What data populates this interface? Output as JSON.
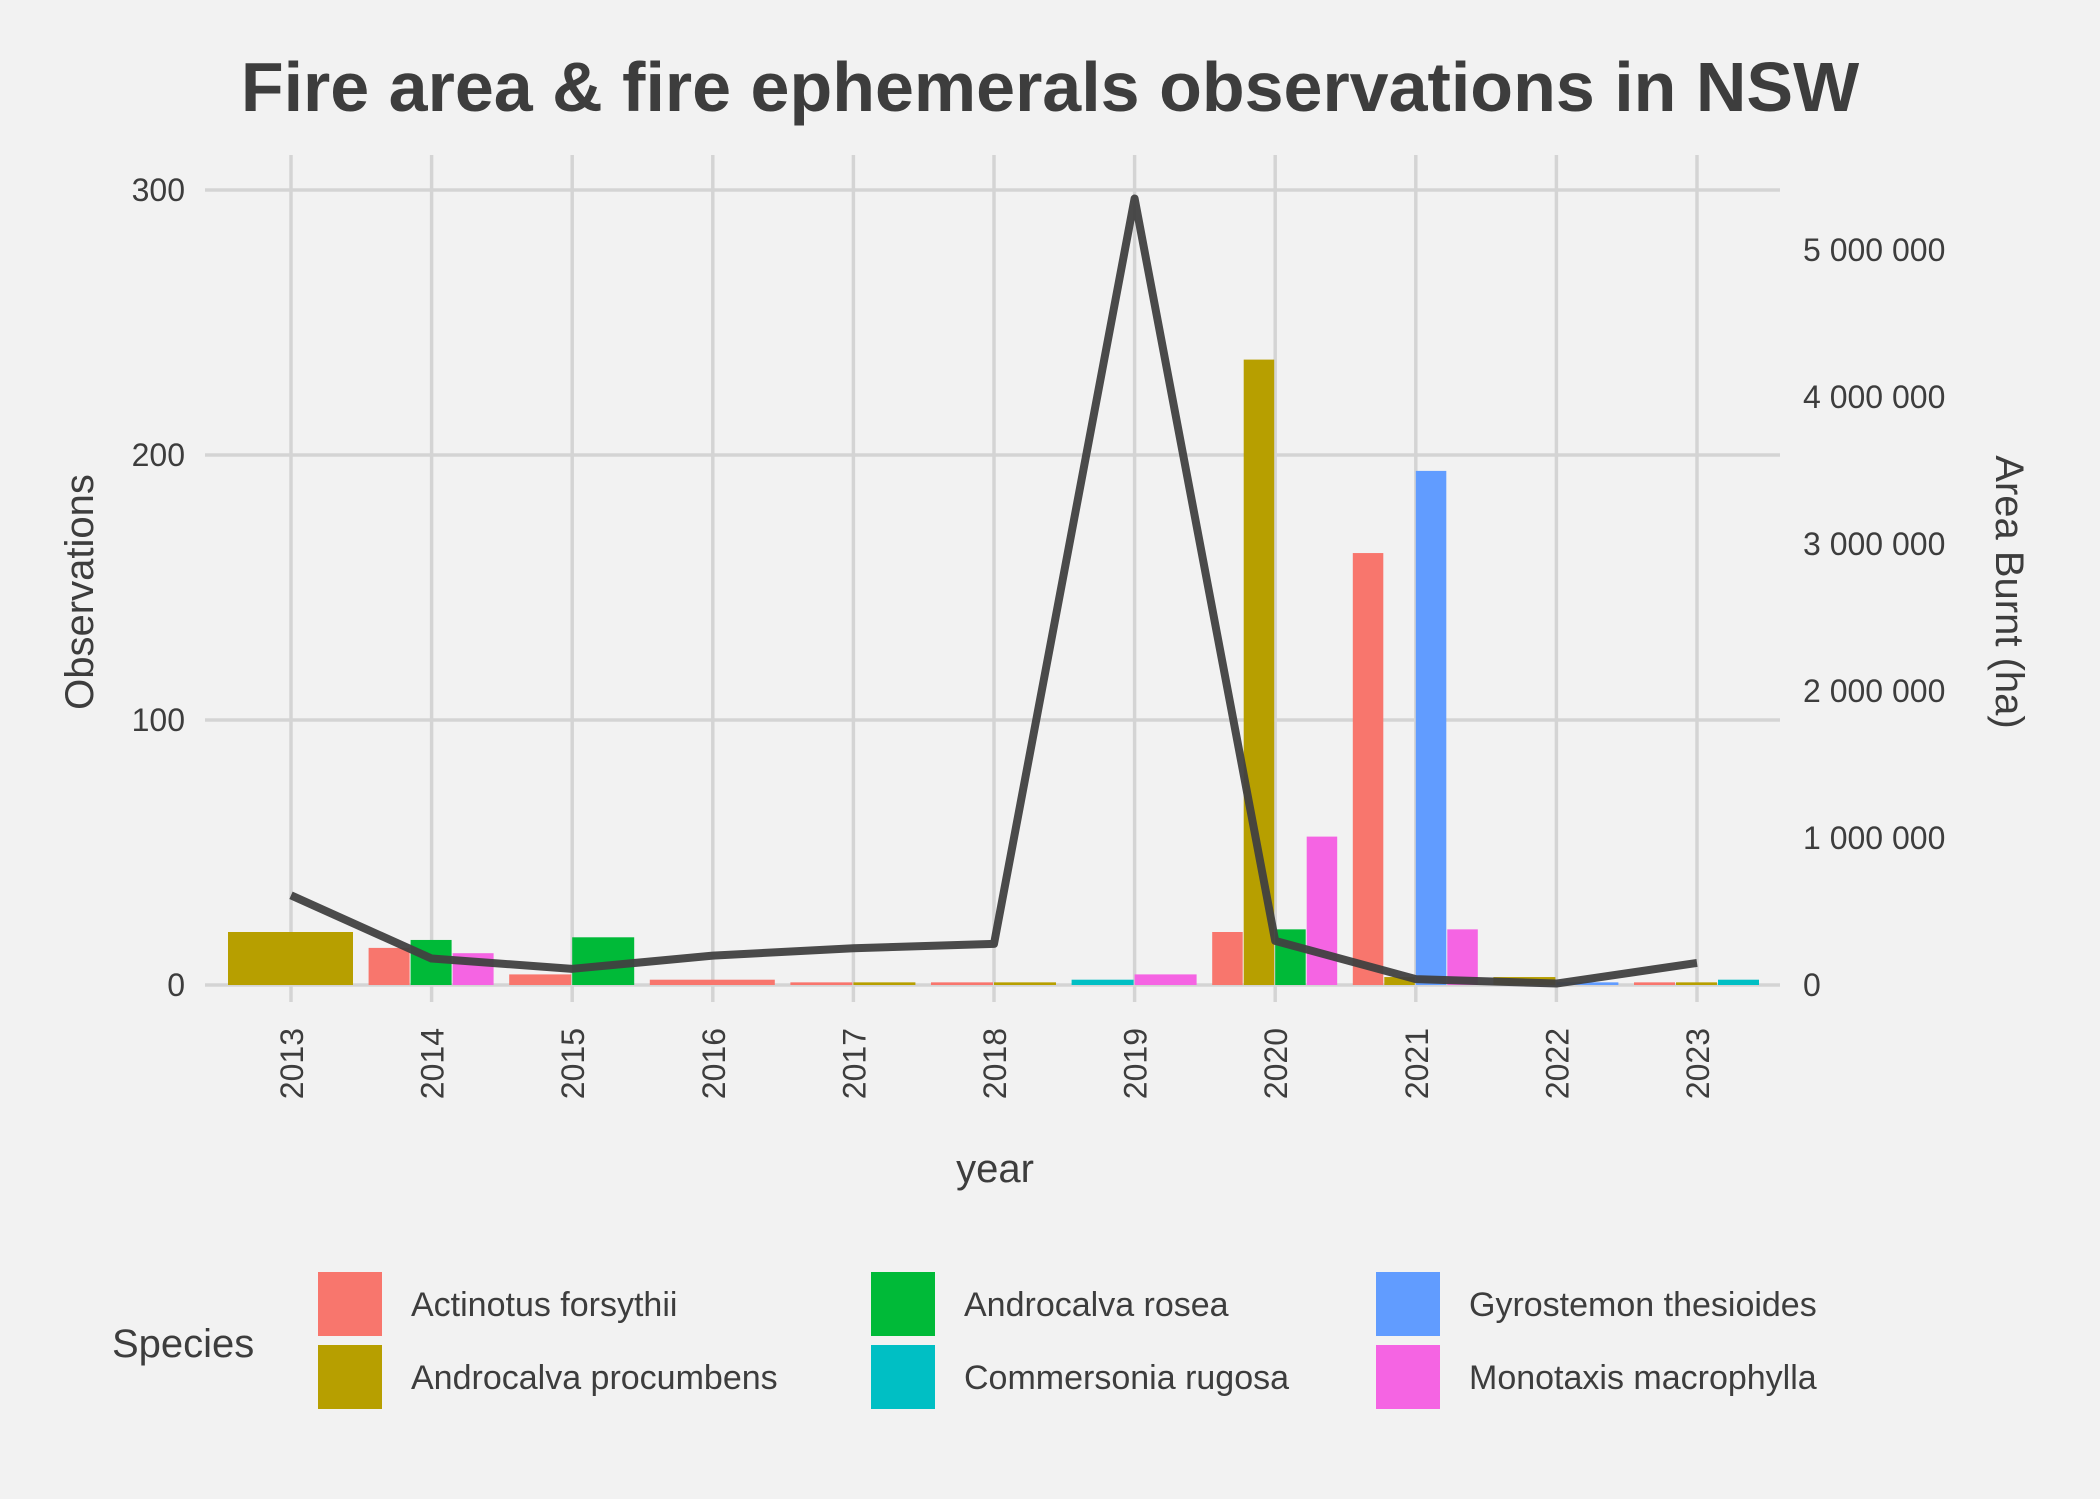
{
  "chart_data": {
    "type": "bar",
    "title": "Fire area & fire ephemerals observations in NSW",
    "xlabel": "year",
    "ylabel": "Observations",
    "y2label": "Area Burnt (ha)",
    "categories": [
      "2013",
      "2014",
      "2015",
      "2016",
      "2017",
      "2018",
      "2019",
      "2020",
      "2021",
      "2022",
      "2023"
    ],
    "ylim": [
      0,
      300
    ],
    "y_ticks": [
      0,
      100,
      200,
      300
    ],
    "y2lim": [
      0,
      5400000
    ],
    "y2_ticks": [
      0,
      1000000,
      2000000,
      3000000,
      4000000,
      5000000
    ],
    "y2_tick_labels": [
      "0",
      "1 000 000",
      "2 000 000",
      "3 000 000",
      "4 000 000",
      "5 000 000"
    ],
    "grid": true,
    "legend": {
      "title": "Species",
      "position": "bottom",
      "entries": [
        {
          "name": "Actinotus forsythii",
          "color": "#F8766D"
        },
        {
          "name": "Androcalva procumbens",
          "color": "#B79F00"
        },
        {
          "name": "Androcalva rosea",
          "color": "#00BA38"
        },
        {
          "name": "Commersonia rugosa",
          "color": "#00BFC4"
        },
        {
          "name": "Gyrostemon thesioides",
          "color": "#619CFF"
        },
        {
          "name": "Monotaxis macrophylla",
          "color": "#F564E3"
        }
      ]
    },
    "bars": [
      {
        "year": "2013",
        "groups": [
          {
            "species": "Androcalva procumbens",
            "value": 20
          }
        ]
      },
      {
        "year": "2014",
        "groups": [
          {
            "species": "Actinotus forsythii",
            "value": 14
          },
          {
            "species": "Androcalva rosea",
            "value": 17
          },
          {
            "species": "Monotaxis macrophylla",
            "value": 12
          }
        ]
      },
      {
        "year": "2015",
        "groups": [
          {
            "species": "Actinotus forsythii",
            "value": 4
          },
          {
            "species": "Androcalva rosea",
            "value": 18
          }
        ]
      },
      {
        "year": "2016",
        "groups": [
          {
            "species": "Actinotus forsythii",
            "value": 2
          }
        ]
      },
      {
        "year": "2017",
        "groups": [
          {
            "species": "Actinotus forsythii",
            "value": 1
          },
          {
            "species": "Androcalva procumbens",
            "value": 1
          }
        ]
      },
      {
        "year": "2018",
        "groups": [
          {
            "species": "Actinotus forsythii",
            "value": 1
          },
          {
            "species": "Androcalva procumbens",
            "value": 1
          }
        ]
      },
      {
        "year": "2019",
        "groups": [
          {
            "species": "Commersonia rugosa",
            "value": 2
          },
          {
            "species": "Monotaxis macrophylla",
            "value": 4
          }
        ]
      },
      {
        "year": "2020",
        "groups": [
          {
            "species": "Actinotus forsythii",
            "value": 20
          },
          {
            "species": "Androcalva procumbens",
            "value": 236
          },
          {
            "species": "Androcalva rosea",
            "value": 21
          },
          {
            "species": "Monotaxis macrophylla",
            "value": 56
          }
        ]
      },
      {
        "year": "2021",
        "groups": [
          {
            "species": "Actinotus forsythii",
            "value": 163
          },
          {
            "species": "Androcalva procumbens",
            "value": 3
          },
          {
            "species": "Gyrostemon thesioides",
            "value": 194
          },
          {
            "species": "Monotaxis macrophylla",
            "value": 21
          }
        ]
      },
      {
        "year": "2022",
        "groups": [
          {
            "species": "Androcalva procumbens",
            "value": 3
          },
          {
            "species": "Gyrostemon thesioides",
            "value": 1
          }
        ]
      },
      {
        "year": "2023",
        "groups": [
          {
            "species": "Actinotus forsythii",
            "value": 1
          },
          {
            "species": "Androcalva procumbens",
            "value": 1
          },
          {
            "species": "Commersonia rugosa",
            "value": 2
          }
        ]
      }
    ],
    "line": {
      "name": "Area Burnt (ha)",
      "axis": "y2",
      "color": "#404040",
      "values": [
        610000,
        180000,
        110000,
        200000,
        250000,
        280000,
        5350000,
        300000,
        40000,
        10000,
        150000
      ]
    }
  }
}
